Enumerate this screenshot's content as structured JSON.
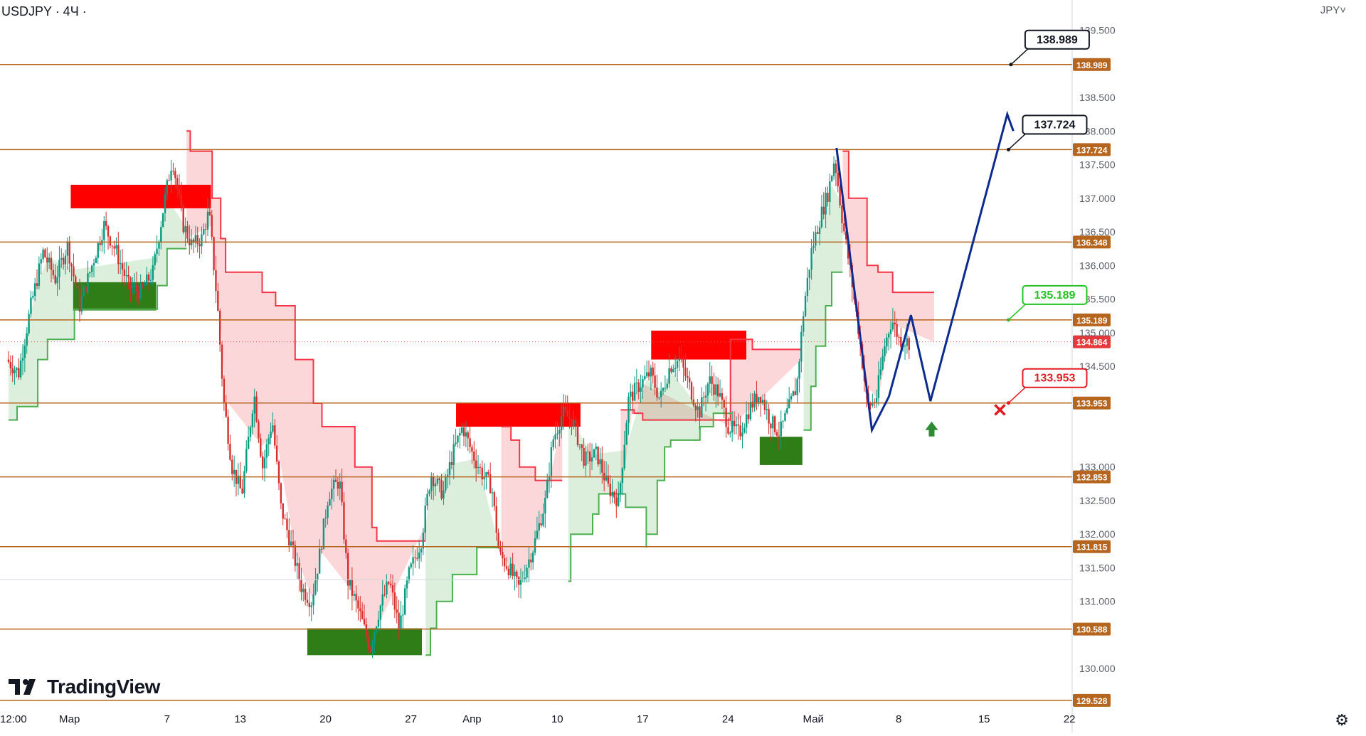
{
  "header": {
    "ticker": "USDJPY · 4Ч ·",
    "currency": "JPY˅"
  },
  "brand": {
    "name": "TradingView",
    "logo_icon": "tradingview-logo-icon"
  },
  "settings_icon": "gear-icon",
  "chart_data": {
    "type": "candlestick",
    "symbol": "USDJPY",
    "timeframe": "4Ч",
    "ylim": [
      129.05,
      139.95
    ],
    "y_ticks": [
      "139.500",
      "138.500",
      "138.000",
      "137.500",
      "137.000",
      "136.500",
      "136.000",
      "135.500",
      "135.000",
      "134.500",
      "133.000",
      "132.500",
      "132.000",
      "131.500",
      "131.000",
      "130.000"
    ],
    "x_ticks": [
      {
        "day": 0,
        "label": "12:00"
      },
      {
        "day": 5,
        "label": "Мар"
      },
      {
        "day": 13,
        "label": "7"
      },
      {
        "day": 19,
        "label": "13"
      },
      {
        "day": 26,
        "label": "20"
      },
      {
        "day": 33,
        "label": "27"
      },
      {
        "day": 38,
        "label": "Апр"
      },
      {
        "day": 45,
        "label": "10"
      },
      {
        "day": 52,
        "label": "17"
      },
      {
        "day": 59,
        "label": "24"
      },
      {
        "day": 66,
        "label": "Май"
      },
      {
        "day": 73,
        "label": "8"
      },
      {
        "day": 80,
        "label": "15"
      },
      {
        "day": 87,
        "label": "22"
      }
    ],
    "levels": [
      {
        "value": 138.989,
        "label": "138.989"
      },
      {
        "value": 137.724,
        "label": "137.724"
      },
      {
        "value": 136.348,
        "label": "136.348"
      },
      {
        "value": 135.189,
        "label": "135.189"
      },
      {
        "value": 133.953,
        "label": "133.953"
      },
      {
        "value": 132.853,
        "label": "132.853"
      },
      {
        "value": 131.815,
        "label": "131.815"
      },
      {
        "value": 130.588,
        "label": "130.588"
      },
      {
        "value": 129.528,
        "label": "129.528"
      }
    ],
    "current_price": {
      "value": 134.864,
      "label": "134.864"
    },
    "callouts": [
      {
        "label": "138.989",
        "value": 138.989,
        "day": 82.2,
        "color": "#131722"
      },
      {
        "label": "137.724",
        "value": 137.724,
        "day": 82.0,
        "color": "#131722"
      },
      {
        "label": "135.189",
        "value": 135.189,
        "day": 82.0,
        "color": "#22c322"
      },
      {
        "label": "133.953",
        "value": 133.953,
        "day": 82.0,
        "color": "#e31b23"
      }
    ],
    "supply_zones": [
      {
        "d0": 5.1,
        "d1": 16.6,
        "top": 137.2,
        "bottom": 136.85
      },
      {
        "d0": 36.7,
        "d1": 46.9,
        "top": 133.95,
        "bottom": 133.6
      },
      {
        "d0": 52.7,
        "d1": 60.5,
        "top": 135.03,
        "bottom": 134.6
      }
    ],
    "demand_zones": [
      {
        "d0": 5.3,
        "d1": 12.1,
        "top": 135.75,
        "bottom": 135.33
      },
      {
        "d0": 24.5,
        "d1": 33.9,
        "top": 130.6,
        "bottom": 130.2
      },
      {
        "d0": 61.6,
        "d1": 65.1,
        "top": 133.45,
        "bottom": 133.03
      }
    ],
    "resistance_trail": [
      [
        14.6,
        138.0
      ],
      [
        14.9,
        138.0
      ],
      [
        14.9,
        137.7
      ],
      [
        16.7,
        137.7
      ],
      [
        16.7,
        137.0
      ],
      [
        17.4,
        137.0
      ],
      [
        17.4,
        136.4
      ],
      [
        17.8,
        136.4
      ],
      [
        17.8,
        135.9
      ],
      [
        20.8,
        135.9
      ],
      [
        20.8,
        135.6
      ],
      [
        21.9,
        135.6
      ],
      [
        21.9,
        135.4
      ],
      [
        23.5,
        135.4
      ],
      [
        23.5,
        134.6
      ],
      [
        25.0,
        134.6
      ],
      [
        25.0,
        133.95
      ],
      [
        25.7,
        133.95
      ],
      [
        25.7,
        133.6
      ],
      [
        28.4,
        133.6
      ],
      [
        28.4,
        133.0
      ],
      [
        29.8,
        133.0
      ],
      [
        29.8,
        132.1
      ],
      [
        30.2,
        132.1
      ],
      [
        30.2,
        131.9
      ],
      [
        34.2,
        131.9
      ]
    ],
    "support_trail": [
      [
        0.0,
        133.7
      ],
      [
        0.7,
        133.7
      ],
      [
        0.7,
        133.9
      ],
      [
        2.4,
        133.9
      ],
      [
        2.4,
        134.6
      ],
      [
        3.2,
        134.6
      ],
      [
        3.2,
        134.9
      ],
      [
        5.4,
        134.9
      ],
      [
        5.4,
        135.35
      ],
      [
        12.2,
        135.35
      ],
      [
        12.2,
        135.7
      ],
      [
        13.0,
        135.7
      ],
      [
        13.0,
        136.25
      ],
      [
        14.6,
        136.25
      ]
    ],
    "resistance_trail_2": [
      [
        40.4,
        133.6
      ],
      [
        41.2,
        133.6
      ],
      [
        41.2,
        133.4
      ],
      [
        41.9,
        133.4
      ],
      [
        41.9,
        133.0
      ],
      [
        43.2,
        133.0
      ],
      [
        43.2,
        132.8
      ],
      [
        45.4,
        132.8
      ]
    ],
    "support_trail_2": [
      [
        34.2,
        130.2
      ],
      [
        34.6,
        130.2
      ],
      [
        34.6,
        130.6
      ],
      [
        35.1,
        130.6
      ],
      [
        35.1,
        131.0
      ],
      [
        36.4,
        131.0
      ],
      [
        36.4,
        131.4
      ],
      [
        38.4,
        131.4
      ],
      [
        38.4,
        131.8
      ],
      [
        40.4,
        131.8
      ],
      [
        40.4,
        131.8
      ]
    ],
    "resistance_trail_3": [
      [
        50.2,
        133.85
      ],
      [
        51.3,
        133.85
      ],
      [
        51.3,
        133.8
      ],
      [
        52.0,
        133.8
      ],
      [
        52.0,
        133.7
      ],
      [
        59.2,
        133.7
      ],
      [
        59.2,
        134.9
      ],
      [
        61.0,
        134.9
      ],
      [
        61.0,
        134.75
      ],
      [
        65.0,
        134.75
      ]
    ],
    "support_trail_3": [
      [
        45.9,
        131.3
      ],
      [
        46.1,
        131.3
      ],
      [
        46.1,
        132.0
      ],
      [
        47.9,
        132.0
      ],
      [
        47.9,
        132.3
      ],
      [
        48.4,
        132.3
      ],
      [
        48.4,
        132.6
      ],
      [
        50.6,
        132.6
      ],
      [
        50.6,
        132.4
      ],
      [
        52.3,
        132.4
      ],
      [
        52.3,
        131.8
      ],
      [
        52.3,
        131.8
      ],
      [
        52.3,
        132.0
      ],
      [
        53.2,
        132.0
      ],
      [
        53.2,
        132.8
      ],
      [
        53.8,
        132.8
      ],
      [
        53.8,
        133.3
      ],
      [
        54.3,
        133.3
      ],
      [
        54.3,
        133.4
      ],
      [
        56.7,
        133.4
      ],
      [
        56.7,
        133.6
      ],
      [
        57.8,
        133.6
      ],
      [
        57.8,
        133.8
      ],
      [
        59.3,
        133.8
      ]
    ],
    "resistance_trail_4": [
      [
        68.4,
        137.7
      ],
      [
        68.9,
        137.7
      ],
      [
        68.9,
        137.0
      ],
      [
        70.4,
        137.0
      ],
      [
        70.4,
        136.0
      ],
      [
        71.3,
        136.0
      ],
      [
        71.3,
        135.9
      ],
      [
        72.5,
        135.9
      ],
      [
        72.5,
        135.6
      ],
      [
        75.9,
        135.6
      ]
    ],
    "support_trail_4": [
      [
        65.2,
        133.55
      ],
      [
        65.8,
        133.55
      ],
      [
        65.8,
        134.2
      ],
      [
        66.2,
        134.2
      ],
      [
        66.2,
        134.8
      ],
      [
        67.0,
        134.8
      ],
      [
        67.0,
        135.4
      ],
      [
        67.5,
        135.4
      ],
      [
        67.5,
        135.9
      ],
      [
        68.4,
        135.9
      ]
    ],
    "projection_path": [
      [
        67.9,
        137.75
      ],
      [
        70.8,
        133.55
      ],
      [
        72.2,
        134.05
      ],
      [
        74.0,
        135.26
      ],
      [
        75.6,
        133.98
      ],
      [
        81.9,
        138.25
      ],
      [
        82.4,
        138.0
      ]
    ]
  },
  "signal_icons": {
    "buy": "up-arrow-icon",
    "stop": "x-mark-icon"
  }
}
